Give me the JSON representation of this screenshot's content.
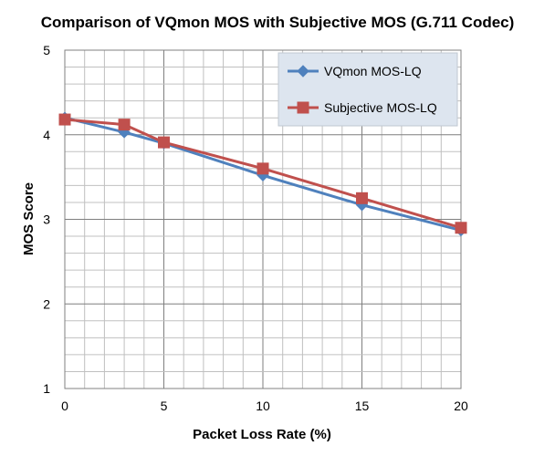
{
  "chart_data": {
    "type": "line",
    "title": "Comparison of VQmon MOS with Subjective MOS (G.711 Codec)",
    "xlabel": "Packet Loss Rate (%)",
    "ylabel": "MOS Score",
    "xlim": [
      0,
      20
    ],
    "ylim": [
      1,
      5
    ],
    "x_ticks": [
      0,
      5,
      10,
      15,
      20
    ],
    "y_ticks": [
      1,
      2,
      3,
      4,
      5
    ],
    "grid": true,
    "legend_position": "top-right",
    "series": [
      {
        "name": "VQmon MOS-LQ",
        "color": "#4F81BD",
        "marker": "diamond",
        "points": [
          [
            0,
            4.2
          ],
          [
            3,
            4.03
          ],
          [
            5,
            3.9
          ],
          [
            10,
            3.52
          ],
          [
            15,
            3.17
          ],
          [
            20,
            2.87
          ]
        ]
      },
      {
        "name": "Subjective MOS-LQ",
        "color": "#C0504D",
        "marker": "square",
        "points": [
          [
            0,
            4.18
          ],
          [
            3,
            4.12
          ],
          [
            5,
            3.91
          ],
          [
            10,
            3.6
          ],
          [
            15,
            3.25
          ],
          [
            20,
            2.9
          ]
        ]
      }
    ]
  }
}
